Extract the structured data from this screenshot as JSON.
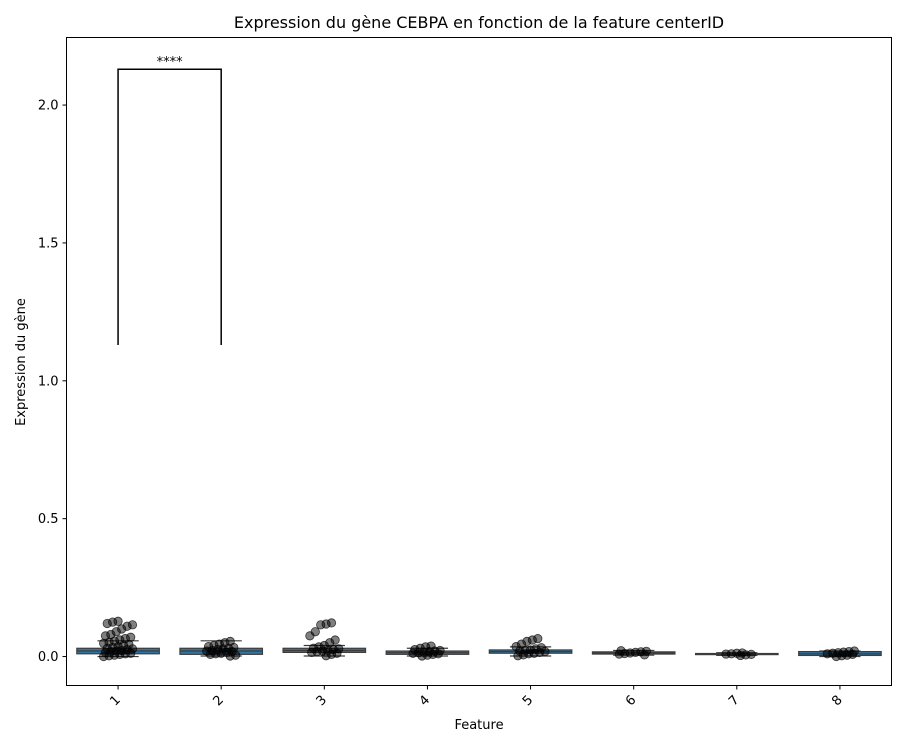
{
  "chart_data": {
    "type": "box",
    "title": "Expression du gène CEBPA en fonction de la feature centerID",
    "xlabel": "Feature",
    "ylabel": "Expression du gène",
    "categories": [
      "1",
      "2",
      "3",
      "4",
      "5",
      "6",
      "7",
      "8"
    ],
    "ylim": [
      -0.105,
      2.245
    ],
    "yticks": [
      0.0,
      0.5,
      1.0,
      1.5,
      2.0
    ],
    "ytick_labels": [
      "0.0",
      "0.5",
      "1.0",
      "1.5",
      "2.0"
    ],
    "grid": false,
    "box_color": "#3274a1",
    "point_color": "#000000",
    "boxes": [
      {
        "category": "1",
        "whislo": 0.0,
        "q1": 0.01,
        "median": 0.02,
        "q3": 0.03,
        "whishi": 0.057,
        "points": [
          0.0,
          0.003,
          0.005,
          0.008,
          0.01,
          0.012,
          0.015,
          0.018,
          0.02,
          0.022,
          0.025,
          0.028,
          0.03,
          0.033,
          0.036,
          0.04,
          0.044,
          0.048,
          0.052,
          0.056,
          0.06,
          0.065,
          0.07,
          0.075,
          0.08,
          0.09,
          0.1,
          0.11,
          0.115,
          0.12,
          0.125,
          0.128
        ]
      },
      {
        "category": "2",
        "whislo": 0.002,
        "q1": 0.008,
        "median": 0.02,
        "q3": 0.03,
        "whishi": 0.057,
        "points": [
          0.002,
          0.005,
          0.008,
          0.01,
          0.012,
          0.015,
          0.018,
          0.02,
          0.022,
          0.025,
          0.028,
          0.03,
          0.033,
          0.036,
          0.04,
          0.045,
          0.05,
          0.055
        ]
      },
      {
        "category": "3",
        "whislo": 0.002,
        "q1": 0.015,
        "median": 0.022,
        "q3": 0.03,
        "whishi": 0.04,
        "points": [
          0.003,
          0.008,
          0.012,
          0.015,
          0.018,
          0.02,
          0.022,
          0.025,
          0.028,
          0.03,
          0.035,
          0.04,
          0.05,
          0.06,
          0.075,
          0.09,
          0.115,
          0.118,
          0.122
        ]
      },
      {
        "category": "4",
        "whislo": 0.002,
        "q1": 0.008,
        "median": 0.014,
        "q3": 0.02,
        "whishi": 0.03,
        "points": [
          0.002,
          0.005,
          0.008,
          0.01,
          0.012,
          0.014,
          0.016,
          0.018,
          0.02,
          0.022,
          0.025,
          0.03,
          0.035,
          0.038
        ]
      },
      {
        "category": "5",
        "whislo": 0.002,
        "q1": 0.012,
        "median": 0.018,
        "q3": 0.024,
        "whishi": 0.035,
        "points": [
          0.003,
          0.006,
          0.01,
          0.012,
          0.015,
          0.018,
          0.02,
          0.022,
          0.024,
          0.028,
          0.032,
          0.036,
          0.045,
          0.055,
          0.06,
          0.065
        ]
      },
      {
        "category": "6",
        "whislo": 0.005,
        "q1": 0.009,
        "median": 0.013,
        "q3": 0.017,
        "whishi": 0.022,
        "points": [
          0.006,
          0.009,
          0.011,
          0.013,
          0.015,
          0.017,
          0.019,
          0.021
        ]
      },
      {
        "category": "7",
        "whislo": 0.004,
        "q1": 0.007,
        "median": 0.009,
        "q3": 0.011,
        "whishi": 0.014,
        "points": [
          0.004,
          0.006,
          0.008,
          0.009,
          0.01,
          0.012,
          0.013
        ]
      },
      {
        "category": "8",
        "whislo": 0.0,
        "q1": 0.004,
        "median": 0.01,
        "q3": 0.018,
        "whishi": 0.02,
        "points": [
          0.0,
          0.003,
          0.005,
          0.008,
          0.01,
          0.012,
          0.014,
          0.016,
          0.018,
          0.02
        ]
      }
    ],
    "annotations": [
      {
        "text": "****",
        "from": "1",
        "to": "2",
        "y_bottom": 1.13,
        "y_top": 2.13
      }
    ]
  }
}
